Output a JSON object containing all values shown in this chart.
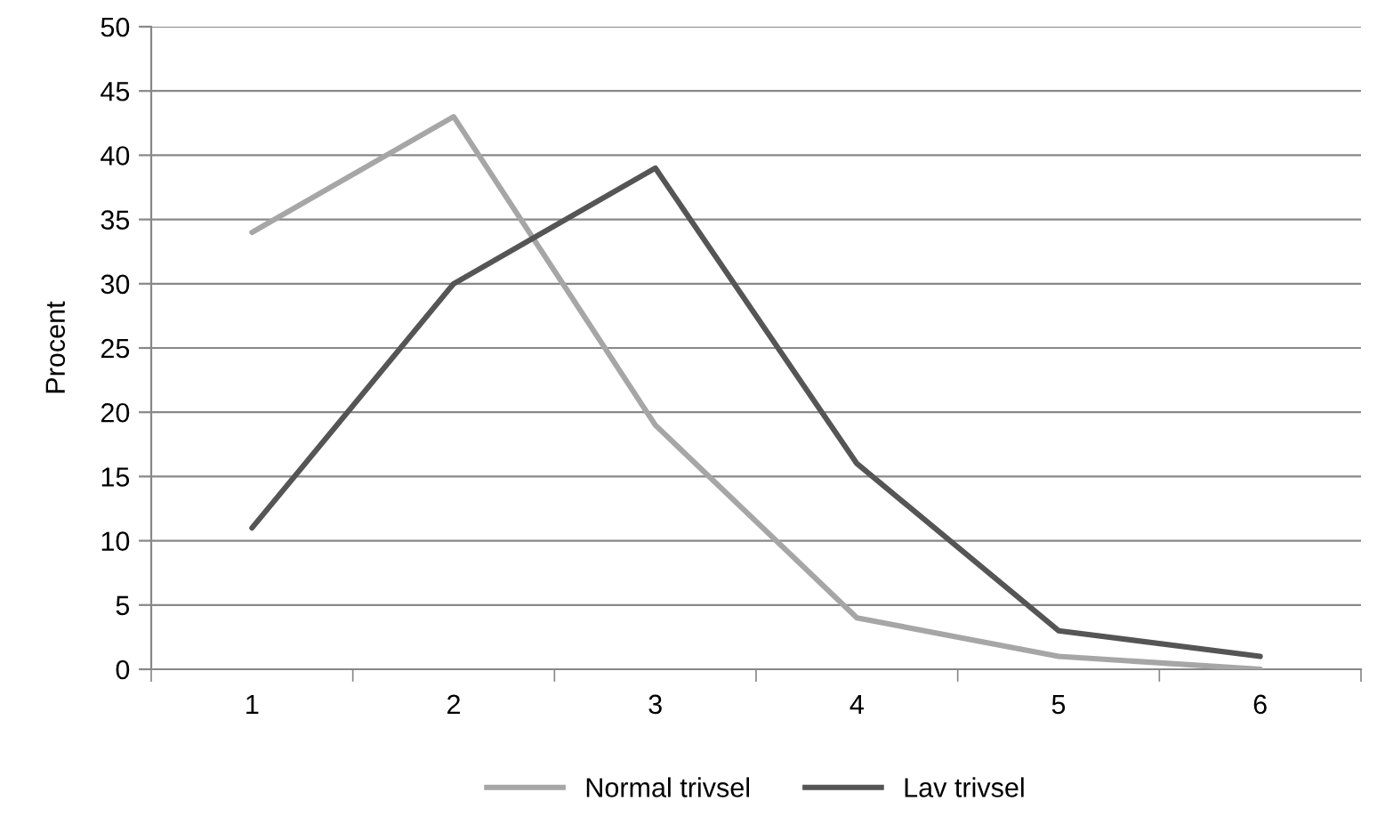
{
  "chart_data": {
    "type": "line",
    "ylabel": "Procent",
    "categories": [
      "1",
      "2",
      "3",
      "4",
      "5",
      "6"
    ],
    "series": [
      {
        "name": "Normal trivsel",
        "color": "#a6a6a6",
        "values": [
          34,
          43,
          19,
          4,
          1,
          0
        ]
      },
      {
        "name": "Lav trivsel",
        "color": "#555555",
        "values": [
          11,
          30,
          39,
          16,
          3,
          1
        ]
      }
    ],
    "ylim": [
      0,
      50
    ],
    "yticks": [
      0,
      5,
      10,
      15,
      20,
      25,
      30,
      35,
      40,
      45,
      50
    ],
    "grid": "y",
    "legend": "bottom",
    "marker": "none",
    "line_style": "solid"
  }
}
